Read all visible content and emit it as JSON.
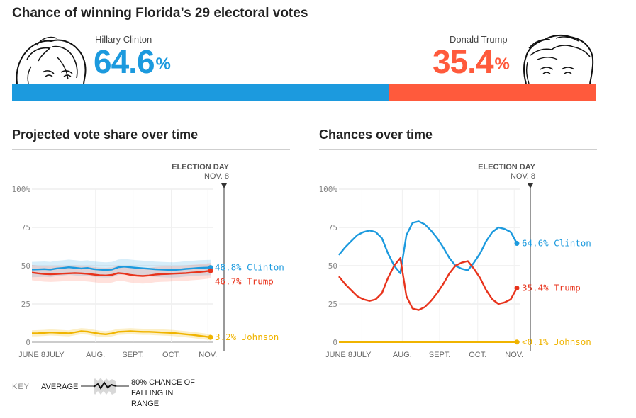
{
  "headline": "Chance of winning Florida’s 29 electoral votes",
  "colors": {
    "clinton": "#1c9ade",
    "trump": "#ff5a3c",
    "trump_line": "#e8331c",
    "johnson": "#f0b400",
    "grid": "#e6e6e6"
  },
  "candidates": [
    {
      "name": "Hillary Clinton",
      "chance": "64.6",
      "sign": "%",
      "chance_value": 64.6
    },
    {
      "name": "Donald Trump",
      "chance": "35.4",
      "sign": "%",
      "chance_value": 35.4
    }
  ],
  "sections": {
    "vote_share": "Projected vote share over time",
    "chances": "Chances over time"
  },
  "key": {
    "label": "KEY",
    "average": "AVERAGE",
    "range": "80% CHANCE OF FALLING IN RANGE"
  },
  "chart_data": [
    {
      "type": "line",
      "title": "Projected vote share over time",
      "ylim": [
        0,
        100
      ],
      "yticks": [
        "100%",
        "75",
        "50",
        "25",
        "0"
      ],
      "xticks": [
        "JUNE 8",
        "JULY",
        "AUG.",
        "SEPT.",
        "OCT.",
        "NOV."
      ],
      "election_day": {
        "label": "ELECTION DAY",
        "date": "NOV. 8"
      },
      "series": [
        {
          "name": "Clinton",
          "end_label": "48.8% Clinton",
          "final": 48.8,
          "values": [
            47.5,
            47.6,
            47.8,
            47.5,
            48.2,
            48.5,
            49.0,
            48.6,
            48.2,
            48.5,
            47.8,
            47.4,
            47.2,
            47.5,
            49.0,
            49.4,
            49.0,
            48.6,
            48.3,
            48.0,
            47.7,
            47.5,
            47.3,
            47.2,
            47.5,
            47.9,
            48.2,
            48.5,
            48.7,
            48.8
          ],
          "band": [
            5,
            5,
            5,
            5,
            5,
            5,
            5,
            5,
            5,
            5,
            5,
            5,
            5,
            5,
            5,
            5,
            5,
            5,
            5,
            5,
            5,
            5,
            5,
            5,
            5,
            5,
            5,
            5,
            5,
            5
          ]
        },
        {
          "name": "Trump",
          "end_label": "46.7% Trump",
          "final": 46.7,
          "values": [
            45.5,
            45.0,
            44.6,
            44.4,
            44.6,
            44.8,
            45.0,
            45.2,
            45.0,
            44.7,
            44.2,
            43.8,
            43.6,
            44.0,
            45.2,
            44.8,
            44.0,
            43.5,
            43.3,
            43.6,
            44.2,
            44.5,
            44.6,
            44.8,
            45.0,
            45.2,
            45.5,
            45.8,
            46.2,
            46.7
          ],
          "band": [
            5,
            5,
            5,
            5,
            5,
            5,
            5,
            5,
            5,
            5,
            5,
            5,
            5,
            5,
            5,
            5,
            5,
            5,
            5,
            5,
            5,
            5,
            5,
            5,
            5,
            5,
            5,
            5,
            5,
            5
          ]
        },
        {
          "name": "Johnson",
          "end_label": "3.2% Johnson",
          "final": 3.2,
          "values": [
            5.8,
            5.9,
            6.1,
            6.4,
            6.2,
            6.0,
            5.8,
            6.5,
            7.2,
            6.9,
            6.2,
            5.5,
            5.2,
            5.8,
            6.8,
            7.0,
            7.2,
            7.0,
            6.8,
            6.8,
            6.6,
            6.4,
            6.2,
            6.0,
            5.6,
            5.2,
            4.8,
            4.3,
            3.8,
            3.2
          ],
          "band": [
            2,
            2,
            2,
            2,
            2,
            2,
            2,
            2,
            2,
            2,
            2,
            2,
            2,
            2,
            2,
            2,
            2,
            2,
            2,
            2,
            2,
            2,
            2,
            2,
            2,
            2,
            2,
            2,
            2,
            2
          ]
        }
      ]
    },
    {
      "type": "line",
      "title": "Chances over time",
      "ylim": [
        0,
        100
      ],
      "yticks": [
        "100%",
        "75",
        "50",
        "25",
        "0"
      ],
      "xticks": [
        "JUNE 8",
        "JULY",
        "AUG.",
        "SEPT.",
        "OCT.",
        "NOV."
      ],
      "election_day": {
        "label": "ELECTION DAY",
        "date": "NOV. 8"
      },
      "series": [
        {
          "name": "Clinton",
          "end_label": "64.6% Clinton",
          "final": 64.6,
          "values": [
            57,
            62,
            66,
            70,
            72,
            73,
            72,
            68,
            58,
            50,
            45,
            70,
            78,
            79,
            77,
            73,
            68,
            62,
            55,
            50,
            48,
            47,
            52,
            58,
            66,
            72,
            75,
            74,
            72,
            64.6
          ]
        },
        {
          "name": "Trump",
          "end_label": "35.4% Trump",
          "final": 35.4,
          "values": [
            43,
            38,
            34,
            30,
            28,
            27,
            28,
            32,
            42,
            50,
            55,
            30,
            22,
            21,
            23,
            27,
            32,
            38,
            45,
            50,
            52,
            53,
            48,
            42,
            34,
            28,
            25,
            26,
            28,
            35.4
          ]
        },
        {
          "name": "Johnson",
          "end_label": "<0.1% Johnson",
          "final": 0.1,
          "values": [
            0.1,
            0.1,
            0.1,
            0.1,
            0.1,
            0.1,
            0.1,
            0.1,
            0.1,
            0.1,
            0.1,
            0.1,
            0.1,
            0.1,
            0.1,
            0.1,
            0.1,
            0.1,
            0.1,
            0.1,
            0.1,
            0.1,
            0.1,
            0.1,
            0.1,
            0.1,
            0.1,
            0.1,
            0.1,
            0.1
          ]
        }
      ]
    }
  ]
}
